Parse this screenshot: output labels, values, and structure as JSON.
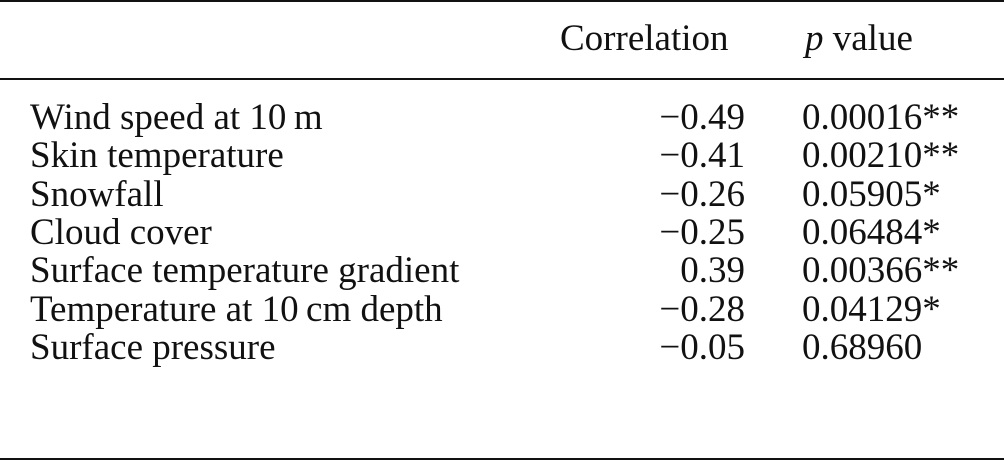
{
  "table": {
    "headers": {
      "label": "",
      "correlation": "Correlation",
      "p_symbol": "p",
      "p_rest": "value"
    },
    "rows": [
      {
        "label": "Wind speed at 10 m",
        "correlation": "−0.49",
        "p": "0.00016**"
      },
      {
        "label": "Skin temperature",
        "correlation": "−0.41",
        "p": "0.00210**"
      },
      {
        "label": "Snowfall",
        "correlation": "−0.26",
        "p": "0.05905*"
      },
      {
        "label": "Cloud cover",
        "correlation": "−0.25",
        "p": "0.06484*"
      },
      {
        "label": "Surface temperature gradient",
        "correlation": "0.39",
        "p": "0.00366**"
      },
      {
        "label": "Temperature at 10 cm depth",
        "correlation": "−0.28",
        "p": "0.04129*"
      },
      {
        "label": "Surface pressure",
        "correlation": "−0.05",
        "p": "0.68960"
      }
    ]
  }
}
